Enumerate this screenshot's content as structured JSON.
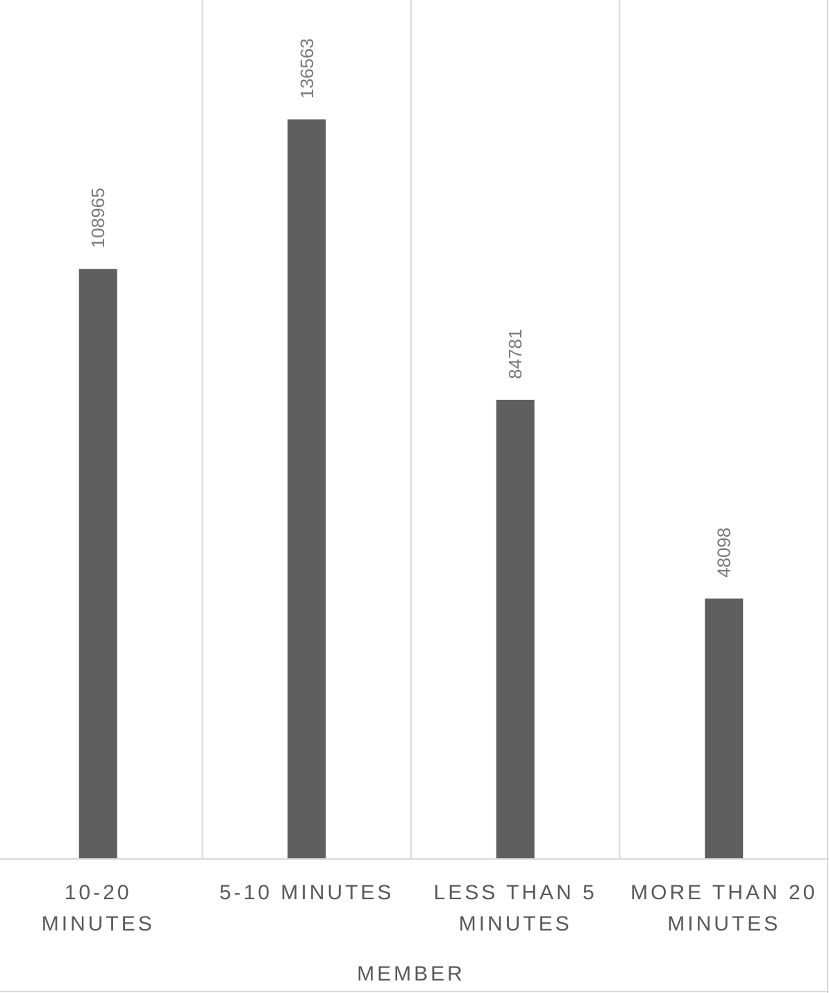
{
  "chart_data": {
    "type": "bar",
    "categories": [
      [
        "10-20",
        "MINUTES"
      ],
      [
        "5-10 MINUTES"
      ],
      [
        "LESS THAN 5",
        "MINUTES"
      ],
      [
        "MORE THAN 20",
        "MINUTES"
      ]
    ],
    "group_label": "MEMBER",
    "series": [
      {
        "values": [
          108965,
          136563,
          84781,
          48098
        ]
      }
    ],
    "data_labels": [
      "108965",
      "136563",
      "84781",
      "48098"
    ],
    "ylim": [
      0,
      140000
    ],
    "grid": false,
    "colors": {
      "bar": "#5f5f5f",
      "divider": "#d9d9d9",
      "text": "#595959",
      "data_label": "#7a7a7a"
    }
  }
}
